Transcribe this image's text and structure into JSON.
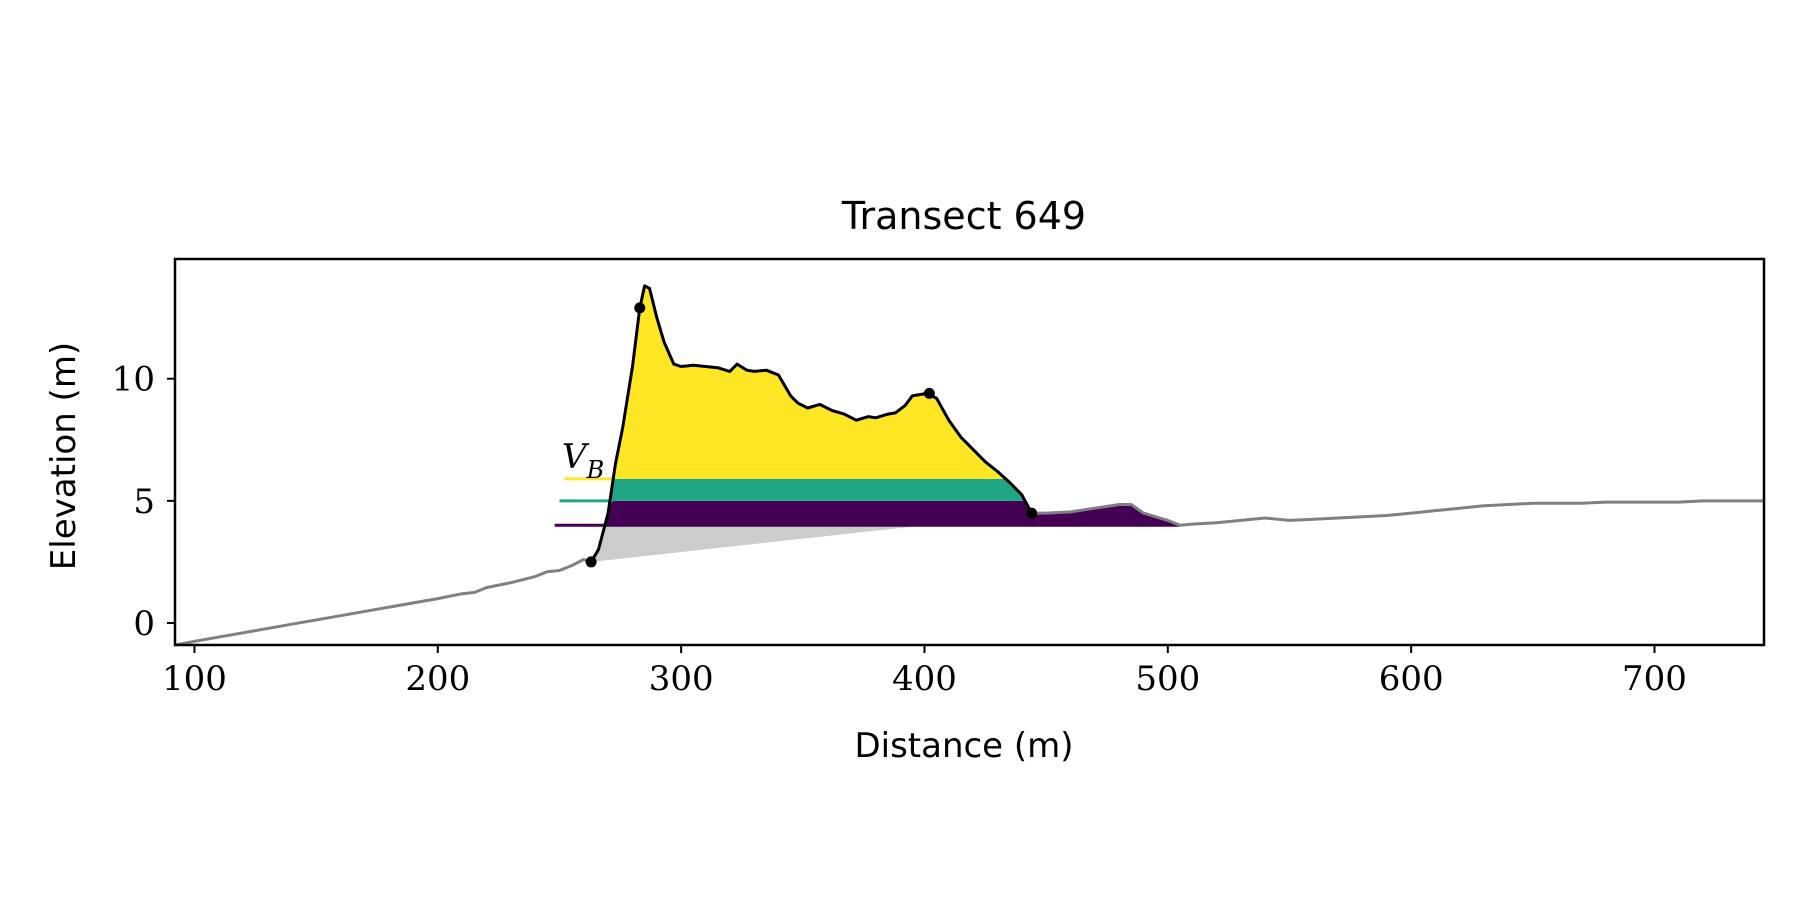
{
  "chart_data": {
    "type": "area",
    "title": "Transect 649",
    "xlabel": "Distance (m)",
    "ylabel": "Elevation (m)",
    "xlim": [
      92,
      745
    ],
    "ylim": [
      -0.9,
      14.9
    ],
    "xticks": [
      100,
      200,
      300,
      400,
      500,
      600,
      700
    ],
    "yticks": [
      0,
      5,
      10
    ],
    "grid": false,
    "annotations": [
      {
        "text": "V",
        "subscript": "B"
      }
    ],
    "colors": {
      "profile_outside": "#808080",
      "profile_inside": "#000000",
      "base_fill": "#cccccc",
      "band_low": "#440154",
      "band_mid": "#21a685",
      "band_high": "#fde725",
      "marker": "#000000"
    },
    "profile": {
      "x": [
        92,
        100,
        120,
        140,
        160,
        180,
        200,
        210,
        215,
        220,
        225,
        230,
        240,
        245,
        250,
        255,
        260,
        263,
        266,
        270,
        273,
        276,
        280,
        283,
        285,
        287,
        290,
        293,
        297,
        300,
        305,
        310,
        315,
        320,
        323,
        327,
        330,
        335,
        340,
        345,
        348,
        352,
        357,
        362,
        367,
        372,
        377,
        380,
        385,
        388,
        392,
        395,
        398,
        401,
        405,
        410,
        415,
        420,
        425,
        430,
        435,
        440,
        444,
        450,
        460,
        470,
        480,
        485,
        490,
        500,
        505,
        510,
        520,
        530,
        540,
        550,
        560,
        570,
        580,
        590,
        600,
        610,
        620,
        630,
        640,
        650,
        660,
        670,
        680,
        690,
        700,
        710,
        720,
        730,
        740,
        745
      ],
      "y": [
        -0.9,
        -0.75,
        -0.4,
        -0.05,
        0.3,
        0.65,
        1.0,
        1.2,
        1.25,
        1.45,
        1.55,
        1.65,
        1.9,
        2.1,
        2.15,
        2.35,
        2.6,
        2.5,
        3.0,
        4.5,
        6.5,
        8.0,
        10.5,
        12.9,
        13.8,
        13.7,
        12.5,
        11.5,
        10.6,
        10.5,
        10.55,
        10.5,
        10.45,
        10.3,
        10.6,
        10.35,
        10.3,
        10.35,
        10.15,
        9.3,
        9.0,
        8.8,
        8.95,
        8.7,
        8.55,
        8.3,
        8.45,
        8.4,
        8.55,
        8.6,
        8.9,
        9.3,
        9.35,
        9.4,
        9.2,
        8.3,
        7.6,
        7.1,
        6.6,
        6.2,
        5.75,
        5.25,
        4.5,
        4.5,
        4.55,
        4.7,
        4.85,
        4.85,
        4.5,
        4.2,
        4.0,
        4.05,
        4.1,
        4.2,
        4.3,
        4.2,
        4.25,
        4.3,
        4.35,
        4.4,
        4.5,
        4.6,
        4.7,
        4.8,
        4.85,
        4.9,
        4.9,
        4.9,
        4.95,
        4.95,
        4.95,
        4.95,
        5.0,
        5.0,
        5.0,
        5.0
      ]
    },
    "markers": {
      "x": [
        263,
        283,
        402,
        444
      ],
      "y": [
        2.5,
        12.9,
        9.4,
        4.5
      ]
    },
    "base_line": {
      "x": [
        263,
        400
      ],
      "y": [
        2.5,
        4.0
      ]
    },
    "bands": [
      {
        "y_low": 4.0,
        "y_high": 5.0,
        "x_right": 505,
        "line_x": [
          248,
          272
        ]
      },
      {
        "y_low": 5.0,
        "y_high": 5.9,
        "x_right": 444,
        "line_x": [
          250,
          272
        ]
      },
      {
        "y_low": 5.9,
        "y_high": 14.0,
        "x_right": 444,
        "line_x": [
          252,
          272
        ]
      }
    ]
  }
}
